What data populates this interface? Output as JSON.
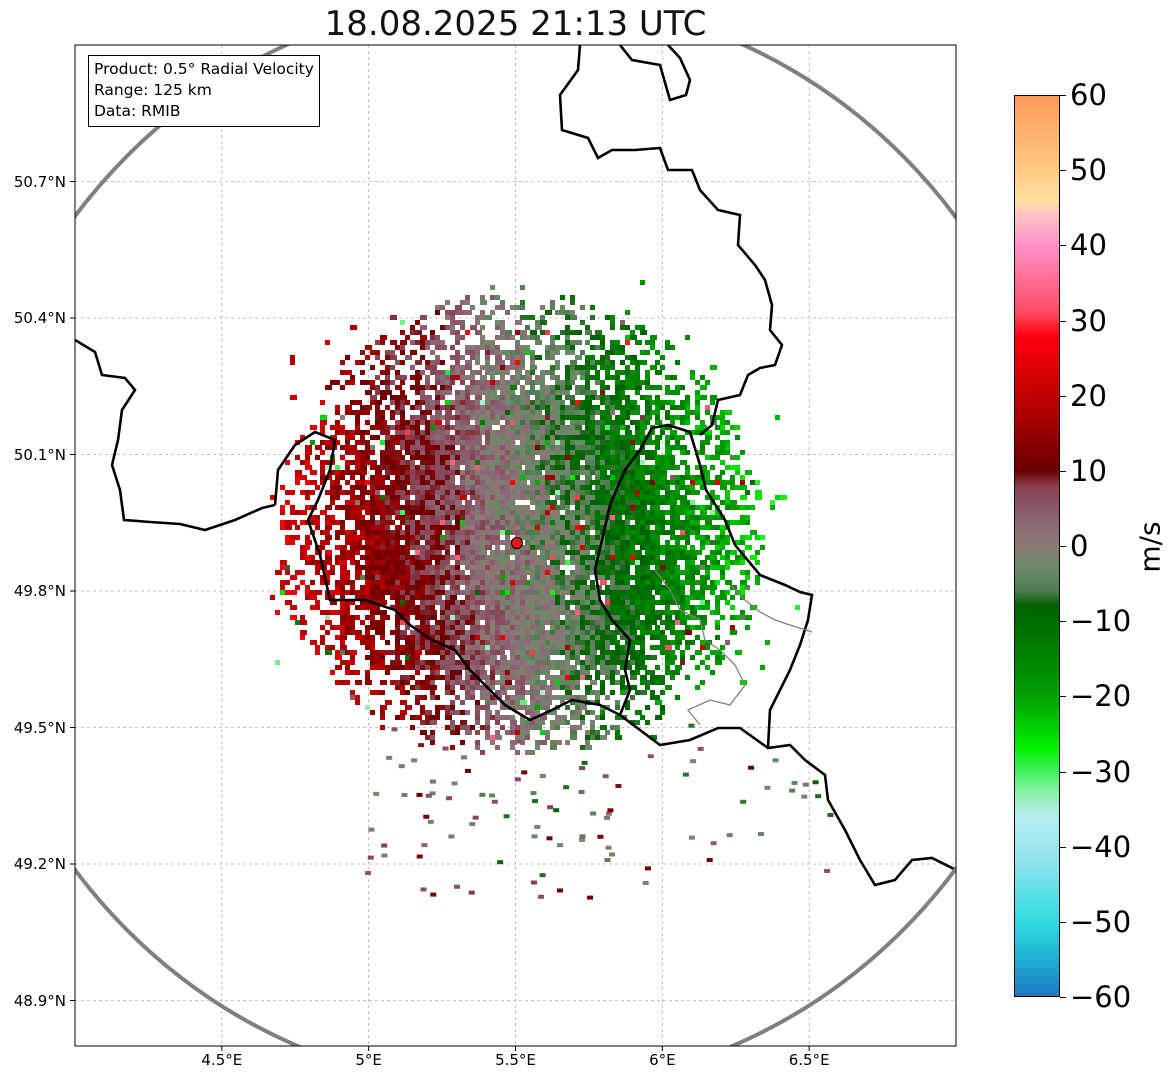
{
  "title": "18.08.2025 21:13 UTC",
  "info_box": {
    "product": "Product: 0.5° Radial Velocity",
    "range": "Range: 125 km",
    "data": "Data: RMIB"
  },
  "map": {
    "lon_range": [
      4.0,
      7.0
    ],
    "lat_range": [
      48.8,
      51.0
    ],
    "lat_ticks": [
      {
        "value": 48.9,
        "label": "48.9°N"
      },
      {
        "value": 49.2,
        "label": "49.2°N"
      },
      {
        "value": 49.5,
        "label": "49.5°N"
      },
      {
        "value": 49.8,
        "label": "49.8°N"
      },
      {
        "value": 50.1,
        "label": "50.1°N"
      },
      {
        "value": 50.4,
        "label": "50.4°N"
      },
      {
        "value": 50.7,
        "label": "50.7°N"
      }
    ],
    "lon_ticks": [
      {
        "value": 4.5,
        "label": "4.5°E"
      },
      {
        "value": 5.0,
        "label": "5°E"
      },
      {
        "value": 5.5,
        "label": "5.5°E"
      },
      {
        "value": 6.0,
        "label": "6°E"
      },
      {
        "value": 6.5,
        "label": "6.5°E"
      }
    ],
    "grid": true,
    "radar_site": {
      "lon": 5.505,
      "lat": 49.915,
      "color": "#e31a1c"
    },
    "range_ring_km": 125,
    "range_ring_color": "#808080",
    "border_color": "#000000",
    "sub_border_color": "#808080"
  },
  "colorbar": {
    "unit": "m/s",
    "min": -60,
    "max": 60,
    "ticks": [
      {
        "value": 60,
        "label": "60"
      },
      {
        "value": 50,
        "label": "50"
      },
      {
        "value": 40,
        "label": "40"
      },
      {
        "value": 30,
        "label": "30"
      },
      {
        "value": 20,
        "label": "20"
      },
      {
        "value": 10,
        "label": "10"
      },
      {
        "value": 0,
        "label": "0"
      },
      {
        "value": -10,
        "label": "−10"
      },
      {
        "value": -20,
        "label": "−20"
      },
      {
        "value": -30,
        "label": "−30"
      },
      {
        "value": -40,
        "label": "−40"
      },
      {
        "value": -50,
        "label": "−50"
      },
      {
        "value": -60,
        "label": "−60"
      }
    ],
    "stops": [
      {
        "value": 60,
        "color": "#ff9a5a"
      },
      {
        "value": 52,
        "color": "#ffc178"
      },
      {
        "value": 46,
        "color": "#ffe0a0"
      },
      {
        "value": 44,
        "color": "#ffc0c8"
      },
      {
        "value": 40,
        "color": "#ff90c8"
      },
      {
        "value": 35,
        "color": "#ff6890"
      },
      {
        "value": 31,
        "color": "#ff4860"
      },
      {
        "value": 28,
        "color": "#ff0010"
      },
      {
        "value": 20,
        "color": "#c00000"
      },
      {
        "value": 10,
        "color": "#6a0000"
      },
      {
        "value": 8,
        "color": "#884050"
      },
      {
        "value": 3,
        "color": "#8a6878"
      },
      {
        "value": 0,
        "color": "#8a7a72"
      },
      {
        "value": -3,
        "color": "#6a8a6a"
      },
      {
        "value": -6,
        "color": "#507a50"
      },
      {
        "value": -8,
        "color": "#006000"
      },
      {
        "value": -20,
        "color": "#00a000"
      },
      {
        "value": -27,
        "color": "#00f000"
      },
      {
        "value": -30,
        "color": "#40f060"
      },
      {
        "value": -33,
        "color": "#90f0a8"
      },
      {
        "value": -36,
        "color": "#b8ecf0"
      },
      {
        "value": -42,
        "color": "#90e4ec"
      },
      {
        "value": -50,
        "color": "#30dce0"
      },
      {
        "value": -55,
        "color": "#20b0d0"
      },
      {
        "value": -60,
        "color": "#1f78c0"
      }
    ]
  }
}
